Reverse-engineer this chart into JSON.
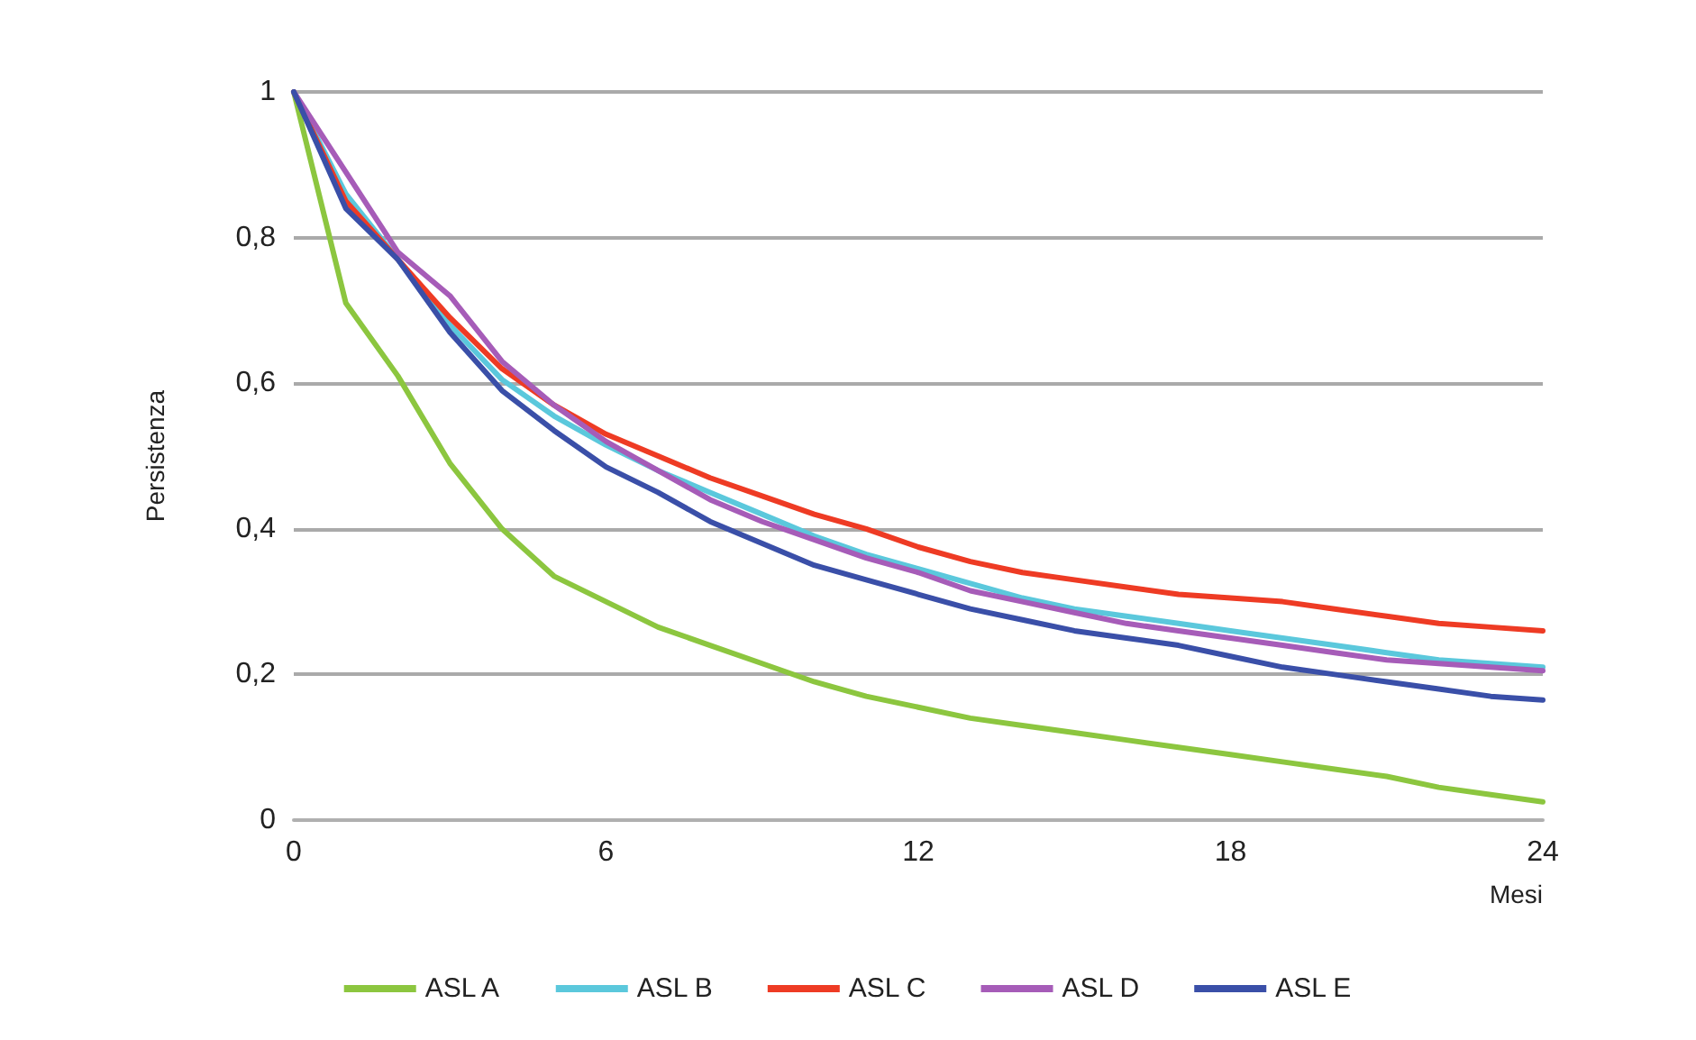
{
  "chart_data": {
    "type": "line",
    "xlabel": "Mesi",
    "ylabel": "Persistenza",
    "x": [
      0,
      1,
      2,
      3,
      4,
      5,
      6,
      7,
      8,
      9,
      10,
      11,
      12,
      13,
      14,
      15,
      16,
      17,
      18,
      19,
      20,
      21,
      22,
      23,
      24
    ],
    "series": [
      {
        "name": "ASL A",
        "color": "#8cc63f",
        "values": [
          1,
          0.71,
          0.61,
          0.49,
          0.4,
          0.335,
          0.3,
          0.265,
          0.24,
          0.215,
          0.19,
          0.17,
          0.155,
          0.14,
          0.13,
          0.12,
          0.11,
          0.1,
          0.09,
          0.08,
          0.07,
          0.06,
          0.045,
          0.035,
          0.025
        ]
      },
      {
        "name": "ASL B",
        "color": "#5bc8dc",
        "values": [
          1,
          0.86,
          0.77,
          0.68,
          0.605,
          0.555,
          0.515,
          0.48,
          0.45,
          0.42,
          0.39,
          0.365,
          0.345,
          0.325,
          0.305,
          0.29,
          0.28,
          0.27,
          0.26,
          0.25,
          0.24,
          0.23,
          0.22,
          0.215,
          0.21
        ]
      },
      {
        "name": "ASL C",
        "color": "#ee3b24",
        "values": [
          1,
          0.85,
          0.77,
          0.69,
          0.62,
          0.57,
          0.53,
          0.5,
          0.47,
          0.445,
          0.42,
          0.4,
          0.375,
          0.355,
          0.34,
          0.33,
          0.32,
          0.31,
          0.305,
          0.3,
          0.29,
          0.28,
          0.27,
          0.265,
          0.26
        ]
      },
      {
        "name": "ASL D",
        "color": "#a65cb8",
        "values": [
          1,
          0.89,
          0.78,
          0.72,
          0.63,
          0.57,
          0.52,
          0.48,
          0.44,
          0.41,
          0.385,
          0.36,
          0.34,
          0.315,
          0.3,
          0.285,
          0.27,
          0.26,
          0.25,
          0.24,
          0.23,
          0.22,
          0.215,
          0.21,
          0.205
        ]
      },
      {
        "name": "ASL E",
        "color": "#3a4fa8",
        "values": [
          1,
          0.84,
          0.77,
          0.67,
          0.59,
          0.535,
          0.485,
          0.45,
          0.41,
          0.38,
          0.35,
          0.33,
          0.31,
          0.29,
          0.275,
          0.26,
          0.25,
          0.24,
          0.225,
          0.21,
          0.2,
          0.19,
          0.18,
          0.17,
          0.165
        ]
      }
    ],
    "xlim": [
      0,
      24
    ],
    "xticks": [
      0,
      6,
      12,
      18,
      24
    ],
    "ylim": [
      0,
      1
    ],
    "yticks": [
      0,
      {
        "value": 0.2,
        "label": "0,2"
      },
      {
        "value": 0.4,
        "label": "0,4"
      },
      {
        "value": 0.6,
        "label": "0,6"
      },
      {
        "value": 0.8,
        "label": "0,8"
      },
      1
    ],
    "grid": "y",
    "legend": "bottom",
    "marker": "none",
    "line_style": "solid"
  }
}
